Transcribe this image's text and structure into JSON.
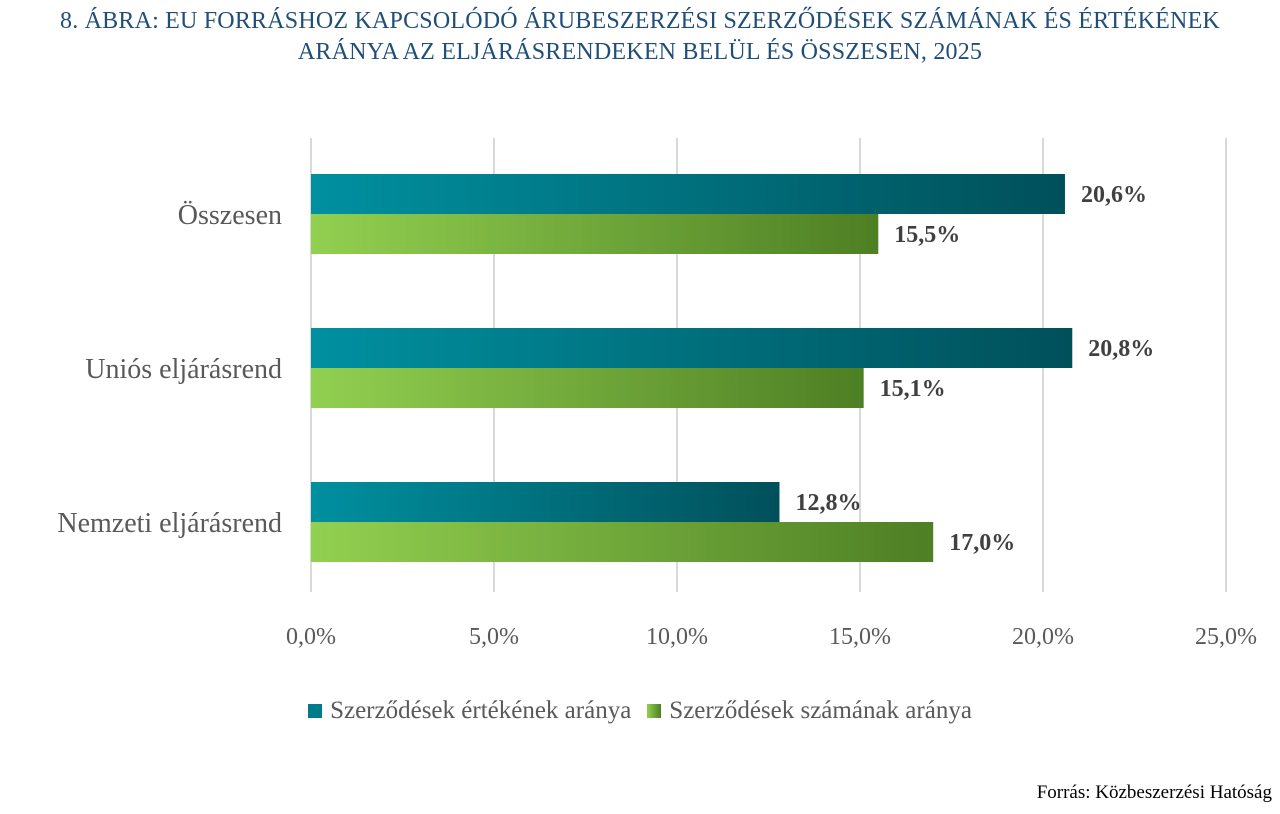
{
  "title_lines": [
    "8. ÁBRA: EU FORRÁSHOZ KAPCSOLÓDÓ ÁRUBESZERZÉSI SZERZŐDÉSEK SZÁMÁNAK ÉS ÉRTÉKÉNEK",
    "ARÁNYA AZ ELJÁRÁSRENDEKEN BELÜL ÉS ÖSSZESEN, 2025"
  ],
  "source": "Forrás: Közbeszerzési Hatóság",
  "colors": {
    "value_series": "#007b8a",
    "value_series_dark": "#00505a",
    "count_series_light": "#92d050",
    "count_series_dark": "#4e7f24",
    "title": "#1f4e79"
  },
  "chart_data": {
    "type": "bar",
    "orientation": "horizontal",
    "categories": [
      "Összesen",
      "Uniós eljárásrend",
      "Nemzeti eljárásrend"
    ],
    "series": [
      {
        "name": "Szerződések értékének aránya",
        "values": [
          20.6,
          20.8,
          12.8
        ],
        "labels": [
          "20,6%",
          "20,8%",
          "12,8%"
        ]
      },
      {
        "name": "Szerződések számának aránya",
        "values": [
          15.5,
          15.1,
          17.0
        ],
        "labels": [
          "15,5%",
          "15,1%",
          "17,0%"
        ]
      }
    ],
    "x_ticks": [
      "0,0%",
      "5,0%",
      "10,0%",
      "15,0%",
      "20,0%",
      "25,0%"
    ],
    "xlim": [
      0,
      25
    ],
    "grid": "vertical",
    "legend": "bottom"
  }
}
